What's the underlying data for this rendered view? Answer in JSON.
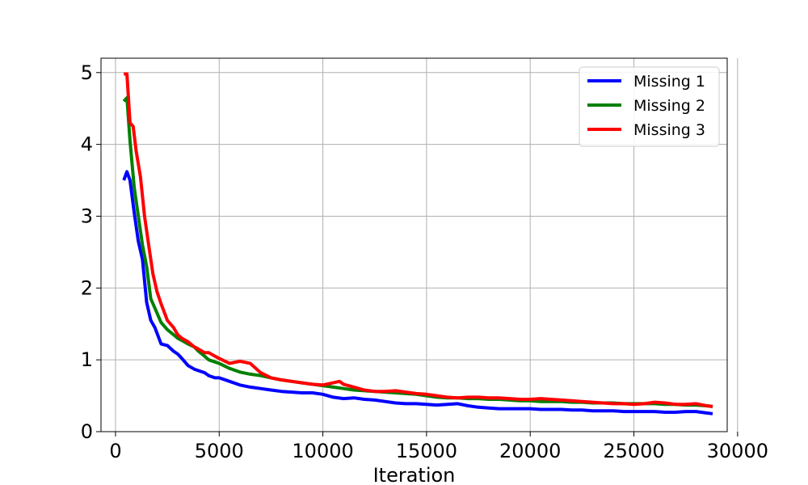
{
  "chart_data": {
    "type": "line",
    "title": "",
    "xlabel": "Iteration",
    "ylabel": "",
    "xlim": [
      -700,
      29500
    ],
    "ylim": [
      0,
      5.2
    ],
    "xticks": [
      0,
      5000,
      10000,
      15000,
      20000,
      25000,
      30000
    ],
    "xtick_labels": [
      "0",
      "5000",
      "10000",
      "15000",
      "20000",
      "25000",
      "30000"
    ],
    "yticks": [
      0,
      1,
      2,
      3,
      4,
      5
    ],
    "ytick_labels": [
      "0",
      "1",
      "2",
      "3",
      "4",
      "5"
    ],
    "grid": true,
    "legend": "top-right",
    "series": [
      {
        "name": "Missing 1",
        "color": "#0000ff",
        "x": [
          400,
          550,
          700,
          900,
          1100,
          1300,
          1500,
          1700,
          1900,
          2200,
          2500,
          2800,
          3000,
          3200,
          3500,
          3800,
          4000,
          4300,
          4500,
          4800,
          5000,
          5500,
          6000,
          6500,
          7000,
          7500,
          8000,
          8500,
          9000,
          9500,
          10000,
          10500,
          11000,
          11500,
          12000,
          12500,
          13000,
          13500,
          14000,
          14500,
          15000,
          15500,
          16000,
          16500,
          17000,
          17500,
          18000,
          18500,
          19000,
          19500,
          20000,
          20500,
          21000,
          21500,
          22000,
          22500,
          23000,
          23500,
          24000,
          24500,
          25000,
          25500,
          26000,
          26500,
          27000,
          27500,
          28000,
          28500,
          28800
        ],
        "values": [
          3.5,
          3.62,
          3.5,
          3.05,
          2.65,
          2.4,
          1.8,
          1.55,
          1.45,
          1.22,
          1.2,
          1.12,
          1.08,
          1.02,
          0.92,
          0.87,
          0.85,
          0.82,
          0.78,
          0.75,
          0.75,
          0.7,
          0.65,
          0.62,
          0.6,
          0.58,
          0.56,
          0.55,
          0.54,
          0.54,
          0.52,
          0.48,
          0.46,
          0.47,
          0.45,
          0.44,
          0.42,
          0.4,
          0.39,
          0.39,
          0.38,
          0.37,
          0.38,
          0.39,
          0.36,
          0.34,
          0.33,
          0.32,
          0.32,
          0.32,
          0.32,
          0.31,
          0.31,
          0.31,
          0.3,
          0.3,
          0.29,
          0.29,
          0.29,
          0.28,
          0.28,
          0.28,
          0.28,
          0.27,
          0.27,
          0.28,
          0.28,
          0.26,
          0.25
        ]
      },
      {
        "name": "Missing 2",
        "color": "#008000",
        "x": [
          400,
          550,
          700,
          900,
          1100,
          1300,
          1500,
          1700,
          1900,
          2200,
          2500,
          2800,
          3000,
          3200,
          3500,
          3800,
          4000,
          4300,
          4500,
          4800,
          5000,
          5500,
          6000,
          6500,
          7000,
          7500,
          8000,
          8500,
          9000,
          9500,
          10000,
          10500,
          11000,
          11500,
          12000,
          12500,
          13000,
          13500,
          14000,
          14500,
          15000,
          15500,
          16000,
          16500,
          17000,
          17500,
          18000,
          18500,
          19000,
          19500,
          20000,
          20500,
          21000,
          21500,
          22000,
          22500,
          23000,
          23500,
          24000,
          24500,
          25000,
          25500,
          26000,
          26500,
          27000,
          27500,
          28000,
          28500,
          28800
        ],
        "values": [
          4.6,
          4.65,
          4.05,
          3.4,
          3.0,
          2.6,
          2.3,
          1.85,
          1.72,
          1.52,
          1.42,
          1.35,
          1.3,
          1.27,
          1.22,
          1.18,
          1.12,
          1.05,
          1.0,
          0.97,
          0.95,
          0.88,
          0.83,
          0.8,
          0.78,
          0.75,
          0.72,
          0.7,
          0.68,
          0.66,
          0.64,
          0.62,
          0.6,
          0.58,
          0.57,
          0.56,
          0.55,
          0.54,
          0.53,
          0.52,
          0.5,
          0.48,
          0.47,
          0.47,
          0.46,
          0.46,
          0.45,
          0.45,
          0.44,
          0.43,
          0.43,
          0.42,
          0.42,
          0.42,
          0.41,
          0.41,
          0.4,
          0.4,
          0.4,
          0.39,
          0.39,
          0.39,
          0.39,
          0.38,
          0.38,
          0.37,
          0.37,
          0.36,
          0.35
        ]
      },
      {
        "name": "Missing 3",
        "color": "#ff0000",
        "x": [
          400,
          550,
          700,
          850,
          1000,
          1200,
          1400,
          1600,
          1800,
          2000,
          2200,
          2500,
          2800,
          3000,
          3200,
          3500,
          3800,
          4000,
          4300,
          4500,
          4800,
          5000,
          5500,
          6000,
          6500,
          7000,
          7500,
          8000,
          8500,
          9000,
          9500,
          10000,
          10500,
          10800,
          11000,
          11500,
          12000,
          12500,
          13000,
          13500,
          14000,
          14500,
          15000,
          15500,
          16000,
          16500,
          17000,
          17500,
          18000,
          18500,
          19000,
          19500,
          20000,
          20500,
          21000,
          21500,
          22000,
          22500,
          23000,
          23500,
          24000,
          24500,
          25000,
          25500,
          26000,
          26500,
          27000,
          27500,
          28000,
          28500,
          28800
        ],
        "values": [
          4.98,
          4.98,
          4.3,
          4.25,
          3.9,
          3.55,
          3.0,
          2.6,
          2.2,
          1.95,
          1.78,
          1.55,
          1.45,
          1.35,
          1.3,
          1.25,
          1.18,
          1.15,
          1.1,
          1.1,
          1.05,
          1.02,
          0.95,
          0.98,
          0.95,
          0.82,
          0.75,
          0.72,
          0.7,
          0.68,
          0.66,
          0.65,
          0.68,
          0.7,
          0.66,
          0.62,
          0.58,
          0.56,
          0.56,
          0.57,
          0.55,
          0.53,
          0.52,
          0.5,
          0.48,
          0.47,
          0.48,
          0.48,
          0.47,
          0.47,
          0.46,
          0.45,
          0.45,
          0.46,
          0.45,
          0.44,
          0.43,
          0.42,
          0.41,
          0.4,
          0.39,
          0.39,
          0.38,
          0.39,
          0.41,
          0.4,
          0.38,
          0.38,
          0.39,
          0.36,
          0.35
        ]
      }
    ]
  }
}
